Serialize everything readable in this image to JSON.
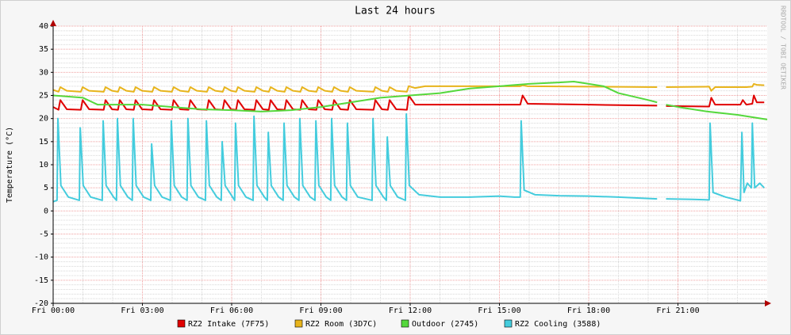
{
  "chart_data": {
    "type": "line",
    "title": "Last 24 hours",
    "y_label": "Temperature (°C)",
    "side_text": "RRDTOOL / TOBI OETIKER",
    "xlim": [
      0,
      24
    ],
    "ylim": [
      -20,
      40
    ],
    "xticks": [
      {
        "value": 0,
        "label": "Fri 00:00"
      },
      {
        "value": 3,
        "label": "Fri 03:00"
      },
      {
        "value": 6,
        "label": "Fri 06:00"
      },
      {
        "value": 9,
        "label": "Fri 09:00"
      },
      {
        "value": 12,
        "label": "Fri 12:00"
      },
      {
        "value": 15,
        "label": "Fri 15:00"
      },
      {
        "value": 18,
        "label": "Fri 18:00"
      },
      {
        "value": 21,
        "label": "Fri 21:00"
      }
    ],
    "yticks": [
      -20,
      -15,
      -10,
      -5,
      0,
      5,
      10,
      15,
      20,
      25,
      30,
      35,
      40
    ],
    "grid": true,
    "series": [
      {
        "name": "RZ2 Intake (7F75)",
        "color": "#e00000",
        "x": [
          0,
          0.18,
          0.24,
          0.46,
          0.93,
          0.99,
          1.21,
          1.7,
          1.76,
          1.98,
          2.18,
          2.24,
          2.46,
          2.71,
          2.77,
          2.99,
          3.33,
          3.39,
          3.61,
          3.99,
          4.05,
          4.27,
          4.55,
          4.61,
          4.83,
          5.17,
          5.23,
          5.45,
          5.7,
          5.76,
          5.98,
          6.15,
          6.21,
          6.43,
          6.77,
          6.83,
          7.05,
          7.25,
          7.31,
          7.53,
          7.78,
          7.84,
          8.06,
          8.31,
          8.37,
          8.59,
          8.85,
          8.91,
          9.13,
          9.38,
          9.44,
          9.66,
          9.91,
          9.97,
          10.19,
          10.77,
          10.83,
          11.05,
          11.25,
          11.31,
          11.53,
          11.89,
          11.95,
          12.17,
          12.5,
          15.7,
          15.78,
          15.95,
          18,
          20.3,
          20.45,
          20.6,
          22.05,
          22.12,
          22.25,
          23.1,
          23.18,
          23.3,
          23.5,
          23.55,
          23.65,
          23.9
        ],
        "values": [
          22.5,
          21.9,
          24,
          22,
          21.9,
          24,
          22,
          21.9,
          24,
          22,
          21.9,
          24,
          22,
          21.9,
          24,
          22,
          21.9,
          24,
          22,
          21.9,
          24,
          22,
          21.9,
          24,
          22,
          21.9,
          24,
          22,
          21.9,
          24,
          22,
          21.9,
          24,
          22,
          21.9,
          24,
          22,
          21.9,
          24,
          22,
          21.9,
          24,
          22,
          21.9,
          24,
          22,
          21.9,
          24,
          22,
          21.9,
          24,
          22,
          21.9,
          24,
          22,
          21.9,
          24,
          22,
          21.9,
          24,
          22,
          21.9,
          25,
          23,
          23,
          23,
          25,
          23.2,
          23,
          22.8,
          null,
          22.7,
          22.6,
          24.5,
          23,
          23,
          24,
          23,
          23.2,
          25,
          23.5,
          23.5
        ]
      },
      {
        "name": "RZ2 Room (3D7C)",
        "color": "#e8b41c",
        "x": [
          0,
          0.18,
          0.24,
          0.46,
          0.93,
          0.99,
          1.21,
          1.7,
          1.76,
          1.98,
          2.18,
          2.24,
          2.46,
          2.71,
          2.77,
          2.99,
          3.33,
          3.39,
          3.61,
          3.99,
          4.05,
          4.27,
          4.55,
          4.61,
          4.83,
          5.17,
          5.23,
          5.45,
          5.7,
          5.76,
          5.98,
          6.15,
          6.21,
          6.43,
          6.77,
          6.83,
          7.05,
          7.25,
          7.31,
          7.53,
          7.78,
          7.84,
          8.06,
          8.31,
          8.37,
          8.59,
          8.85,
          8.91,
          9.13,
          9.38,
          9.44,
          9.66,
          9.91,
          9.97,
          10.19,
          10.77,
          10.83,
          11.05,
          11.25,
          11.31,
          11.53,
          11.89,
          11.95,
          12.17,
          12.5,
          15.7,
          15.78,
          15.95,
          18,
          20.3,
          20.45,
          20.6,
          22.05,
          22.12,
          22.25,
          23.1,
          23.18,
          23.3,
          23.5,
          23.55,
          23.65,
          23.9
        ],
        "values": [
          26.2,
          25.8,
          26.8,
          26,
          25.8,
          26.8,
          26,
          25.8,
          26.8,
          26,
          25.8,
          26.8,
          26,
          25.8,
          26.8,
          26,
          25.8,
          26.8,
          26,
          25.8,
          26.8,
          26,
          25.8,
          26.8,
          26,
          25.8,
          26.8,
          26,
          25.8,
          26.8,
          26,
          25.8,
          26.8,
          26,
          25.8,
          26.8,
          26,
          25.8,
          26.8,
          26,
          25.8,
          26.8,
          26,
          25.8,
          26.8,
          26,
          25.8,
          26.8,
          26,
          25.8,
          26.8,
          26,
          25.8,
          26.8,
          26,
          25.8,
          26.8,
          26,
          25.8,
          26.8,
          26,
          25.8,
          27,
          26.6,
          27,
          27,
          27.2,
          27,
          26.9,
          26.8,
          null,
          26.8,
          26.9,
          26,
          26.8,
          26.8,
          26.8,
          26.8,
          26.9,
          27.5,
          27.3,
          27.2
        ]
      },
      {
        "name": "Outdoor (2745)",
        "color": "#55d83c",
        "x": [
          0,
          1,
          1.5,
          3,
          4,
          5,
          6,
          7,
          8,
          9,
          10,
          11,
          12,
          13,
          14,
          15,
          16,
          17,
          17.5,
          18,
          18.5,
          19,
          20,
          20.3,
          20.45,
          20.6,
          21,
          22,
          23,
          24
        ],
        "values": [
          25,
          24.5,
          23,
          23,
          22.5,
          22,
          21.8,
          21.5,
          21.8,
          22.5,
          23.5,
          24.5,
          25,
          25.5,
          26.5,
          27,
          27.5,
          27.8,
          28,
          27.5,
          27,
          25.5,
          24,
          23.5,
          null,
          23,
          22.5,
          21.5,
          20.8,
          19.8
        ]
      },
      {
        "name": "RZ2 Cooling (3588)",
        "color": "#44ccdd",
        "x": [
          0,
          0.13,
          0.16,
          0.26,
          0.51,
          0.88,
          0.91,
          1.01,
          1.26,
          1.65,
          1.68,
          1.78,
          2.03,
          2.13,
          2.16,
          2.26,
          2.51,
          2.66,
          2.69,
          2.79,
          3.04,
          3.28,
          3.31,
          3.41,
          3.66,
          3.94,
          3.97,
          4.07,
          4.32,
          4.5,
          4.53,
          4.63,
          4.88,
          5.12,
          5.15,
          5.25,
          5.5,
          5.65,
          5.68,
          5.78,
          6.03,
          6.1,
          6.13,
          6.23,
          6.48,
          6.72,
          6.75,
          6.85,
          7.1,
          7.2,
          7.23,
          7.33,
          7.58,
          7.73,
          7.76,
          7.86,
          8.11,
          8.26,
          8.29,
          8.39,
          8.64,
          8.8,
          8.83,
          8.93,
          9.18,
          9.33,
          9.36,
          9.46,
          9.71,
          9.86,
          9.89,
          9.99,
          10.24,
          10.72,
          10.75,
          10.85,
          11.1,
          11.2,
          11.23,
          11.33,
          11.58,
          11.84,
          11.87,
          11.97,
          12.3,
          13,
          14,
          15,
          15.5,
          15.7,
          15.73,
          15.83,
          16.2,
          17,
          18,
          19,
          20,
          20.3,
          20.45,
          20.6,
          21.5,
          22.05,
          22.08,
          22.18,
          22.6,
          23.1,
          23.15,
          23.22,
          23.33,
          23.47,
          23.5,
          23.58,
          23.75,
          23.9
        ],
        "values": [
          2,
          2.3,
          20,
          5.5,
          3,
          2.3,
          18,
          5.5,
          3,
          2.3,
          19.5,
          5.5,
          3,
          2.3,
          20,
          5.5,
          3,
          2.3,
          20,
          5.5,
          3,
          2.3,
          14.5,
          5.5,
          3,
          2.3,
          19.5,
          5.5,
          3,
          2.3,
          20,
          5.5,
          3,
          2.3,
          19.5,
          5.5,
          3,
          2.3,
          15,
          5.5,
          3,
          2.3,
          19,
          5.5,
          3,
          2.3,
          20.5,
          5.5,
          3,
          2.3,
          17,
          5.5,
          3,
          2.3,
          19,
          5.5,
          3,
          2.3,
          20,
          5.5,
          3,
          2.3,
          19.5,
          5.5,
          3,
          2.3,
          20,
          5.5,
          3,
          2.3,
          19,
          5.5,
          3,
          2.3,
          20,
          5.5,
          3,
          2.3,
          16,
          5.5,
          3,
          2.3,
          21,
          5.5,
          3.5,
          3,
          3,
          3.2,
          3,
          3,
          19.5,
          4.5,
          3.5,
          3.3,
          3.2,
          3,
          2.7,
          2.6,
          null,
          2.6,
          2.5,
          2.4,
          19,
          4,
          3,
          2.2,
          17,
          4,
          6,
          5,
          19,
          5,
          6,
          5
        ]
      }
    ]
  }
}
